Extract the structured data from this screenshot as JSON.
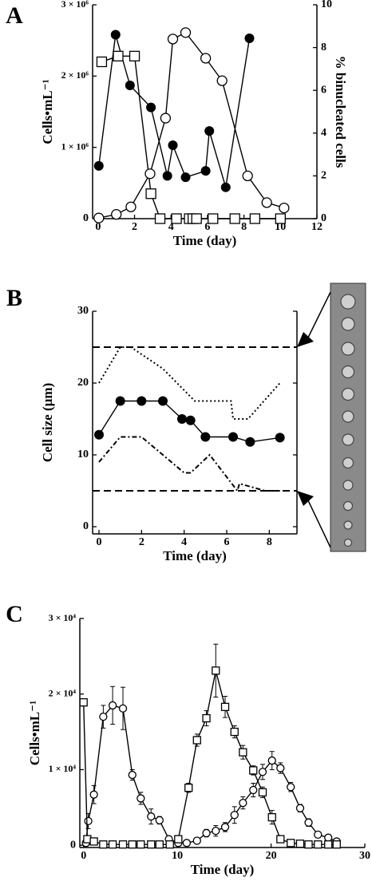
{
  "chart_data": [
    {
      "type": "line",
      "panel": "A",
      "x_label": "Time (day)",
      "y_label": "Cells•mL⁻¹",
      "y2_label": "% binucleated cells",
      "xlim": [
        -0.3,
        12
      ],
      "xticks": [
        0,
        2,
        4,
        6,
        8,
        10,
        12
      ],
      "ylim": [
        0,
        3000000
      ],
      "yticks": [
        0,
        {
          "value": 1000000,
          "label": "1 × 10⁶"
        },
        {
          "value": 2000000,
          "label": "2 × 10⁶"
        },
        {
          "value": 3000000,
          "label": "3 × 10⁶"
        }
      ],
      "y2lim": [
        0,
        10
      ],
      "y2ticks": [
        0,
        2,
        4,
        6,
        8,
        10
      ],
      "series": [
        {
          "color": "#000",
          "marker": "filled-circle",
          "x": [
            0.04,
            0.96,
            1.75,
            2.9,
            3.8,
            4.1,
            4.8,
            5.9,
            6.1,
            7.0,
            8.3
          ],
          "values": [
            740000,
            2580000,
            1870000,
            1560000,
            600000,
            1030000,
            580000,
            670000,
            1230000,
            440000,
            2530000
          ]
        },
        {
          "color": "#000",
          "marker": "open-square",
          "x": [
            0.2,
            1.1,
            2.0,
            2.9,
            3.4,
            4.3,
            5.0,
            5.2,
            5.4,
            6.3,
            7.5,
            8.6,
            10.0
          ],
          "values": [
            2200000,
            2280000,
            2280000,
            350000,
            0,
            0,
            0,
            0,
            0,
            0,
            0,
            0,
            0
          ]
        },
        {
          "color": "#000",
          "marker": "open-circle",
          "axis": "y2",
          "x": [
            0.04,
            1.0,
            1.8,
            2.85,
            3.7,
            4.1,
            4.8,
            5.9,
            6.8,
            8.2,
            9.25,
            10.2
          ],
          "values": [
            0.03,
            0.2,
            0.55,
            2.1,
            4.7,
            8.4,
            8.7,
            7.5,
            6.45,
            2.0,
            0.75,
            0.5
          ]
        }
      ]
    },
    {
      "type": "line",
      "panel": "B",
      "x_label": "Time (day)",
      "y_label": "Cell size (µm)",
      "xlim": [
        -0.3,
        9.3
      ],
      "xticks": [
        0,
        2,
        4,
        6,
        8
      ],
      "ylim": [
        -1,
        30
      ],
      "yticks": [
        0,
        10,
        20,
        30
      ],
      "hlines": [
        25,
        5
      ],
      "series": [
        {
          "color": "#000",
          "marker": "filled-circle",
          "x": [
            0,
            1,
            2,
            3,
            3.9,
            4.3,
            5,
            6.3,
            7.1,
            8.5
          ],
          "values": [
            12.8,
            17.5,
            17.5,
            17.5,
            15,
            14.8,
            12.5,
            12.5,
            11.8,
            12.4
          ]
        },
        {
          "color": "#000",
          "marker": "none",
          "dash": "2 3",
          "x": [
            0,
            1,
            1.5,
            3,
            4.5,
            5,
            6.2,
            6.3,
            7,
            8.5
          ],
          "values": [
            20,
            25,
            25,
            22,
            17.5,
            17.5,
            17.5,
            15,
            15,
            20
          ]
        },
        {
          "color": "#000",
          "marker": "none",
          "dash": "6 3 2 3",
          "x": [
            0,
            1,
            2,
            4,
            4.3,
            5.2,
            6.5,
            6.6,
            7.8,
            8.5
          ],
          "values": [
            9,
            12.5,
            12.5,
            7.5,
            7.5,
            10,
            5,
            6,
            5,
            5
          ]
        }
      ]
    },
    {
      "type": "line",
      "panel": "C",
      "x_label": "Time (day)",
      "y_label": "Cells•mL⁻¹",
      "xlim": [
        -0.4,
        30
      ],
      "xticks": [
        0,
        10,
        20,
        30
      ],
      "ylim": [
        -300,
        30000
      ],
      "yticks": [
        0,
        {
          "value": 10000,
          "label": "1 × 10⁴"
        },
        {
          "value": 20000,
          "label": "2 × 10⁴"
        },
        {
          "value": 30000,
          "label": "3 × 10⁴"
        }
      ],
      "series": [
        {
          "color": "#000",
          "marker": "open-circle",
          "x": [
            0.25,
            0.5,
            1.1,
            2.1,
            3.1,
            4.2,
            5.2,
            6.1,
            7.2,
            8.1,
            9.1,
            10.1,
            11,
            12.1,
            13.1,
            14.1,
            15.1,
            16.1,
            17,
            18.1,
            19.1,
            20.1,
            21,
            22.1,
            23.1,
            24,
            25,
            26.1,
            27
          ],
          "values": [
            300,
            3200,
            6700,
            17000,
            18500,
            18100,
            9300,
            6200,
            3800,
            3300,
            800,
            300,
            300,
            600,
            1600,
            1900,
            2400,
            4000,
            5600,
            7300,
            9700,
            11200,
            10200,
            7700,
            4900,
            3000,
            1400,
            1000,
            500
          ],
          "errors": [
            300,
            1000,
            1200,
            1500,
            2500,
            2800,
            700,
            800,
            1000,
            500,
            300,
            200,
            200,
            300,
            500,
            700,
            600,
            1100,
            800,
            900,
            1000,
            1200,
            700,
            600,
            500,
            500,
            400,
            300,
            300
          ]
        },
        {
          "color": "#000",
          "marker": "open-square",
          "x": [
            0,
            0.4,
            1.1,
            2.1,
            3.1,
            4.2,
            5.2,
            6.1,
            7.2,
            8.1,
            9.2,
            10.1,
            11.2,
            12.1,
            13.1,
            14.1,
            15.1,
            16.1,
            17,
            18.1,
            19.1,
            20.1,
            21,
            22.1,
            23.1,
            24,
            25,
            26.1,
            27
          ],
          "values": [
            18900,
            800,
            500,
            100,
            100,
            100,
            100,
            100,
            100,
            100,
            100,
            800,
            7600,
            13900,
            16800,
            23100,
            18300,
            15000,
            12300,
            9900,
            7000,
            3700,
            800,
            300,
            200,
            100,
            100,
            100,
            100
          ],
          "errors": [
            300,
            300,
            200,
            100,
            100,
            100,
            100,
            100,
            100,
            100,
            100,
            300,
            600,
            800,
            1000,
            3500,
            1400,
            800,
            900,
            600,
            700,
            900,
            300,
            100,
            100,
            100,
            100,
            100,
            100
          ]
        }
      ]
    }
  ]
}
